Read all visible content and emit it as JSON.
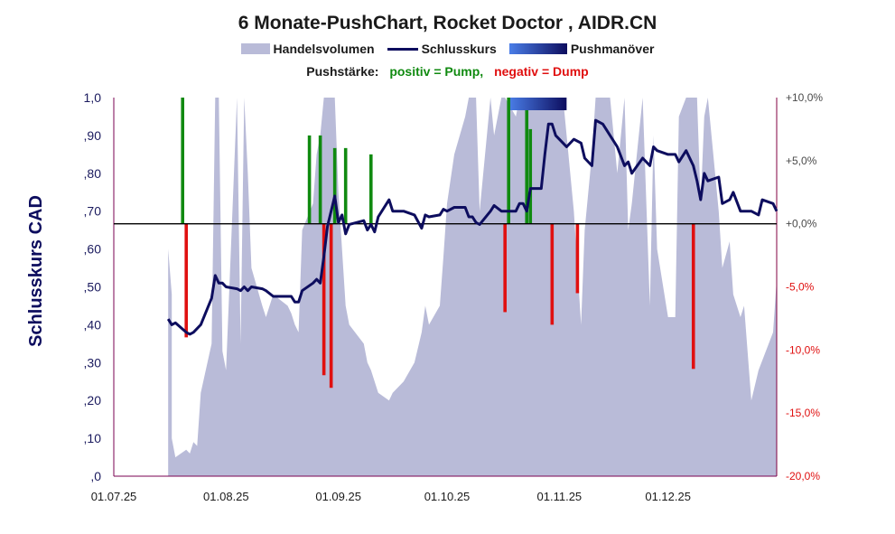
{
  "title": "6 Monate-PushChart, Rocket Doctor , AIDR.CN",
  "legend": {
    "volume": "Handelsvolumen",
    "close": "Schlusskurs",
    "push": "Pushmanöver"
  },
  "subtitle": {
    "lead": "Pushstärke:",
    "positive": "positiv = Pump,",
    "negative": "negativ = Dump"
  },
  "colors": {
    "volume": "#b9bbd8",
    "close": "#0d0d5e",
    "pump": "#108a10",
    "dump": "#e01010",
    "axis_right": "#800040",
    "push_start": "#4a7ee8",
    "push_end": "#0d0d5e"
  },
  "chart_data": {
    "type": "line",
    "ylabel": "Schlusskurs CAD",
    "y_left": {
      "range": [
        0,
        1.0
      ],
      "ticks": [
        ",0",
        ",10",
        ",20",
        ",30",
        ",40",
        ",50",
        ",60",
        ",70",
        ",80",
        ",90",
        "1,0"
      ]
    },
    "y_right": {
      "range": [
        -20,
        10
      ],
      "ticks": [
        "-20,0%",
        "-15,0%",
        "-10,0%",
        "-5,0%",
        "+0,0%",
        "+5,0%",
        "+10,0%"
      ]
    },
    "x": {
      "range": [
        "2025-07-01",
        "2025-12-31"
      ],
      "ticks": [
        "01.07.25",
        "01.08.25",
        "01.09.25",
        "01.10.25",
        "01.11.25",
        "01.12.25"
      ]
    },
    "close_series": {
      "name": "Schlusskurs",
      "points": [
        [
          "2025-07-16",
          0.415
        ],
        [
          "2025-07-17",
          0.4
        ],
        [
          "2025-07-18",
          0.405
        ],
        [
          "2025-07-21",
          0.38
        ],
        [
          "2025-07-22",
          0.375
        ],
        [
          "2025-07-23",
          0.38
        ],
        [
          "2025-07-24",
          0.39
        ],
        [
          "2025-07-25",
          0.4
        ],
        [
          "2025-07-28",
          0.47
        ],
        [
          "2025-07-29",
          0.53
        ],
        [
          "2025-07-30",
          0.51
        ],
        [
          "2025-07-31",
          0.51
        ],
        [
          "2025-08-01",
          0.5
        ],
        [
          "2025-08-04",
          0.495
        ],
        [
          "2025-08-05",
          0.49
        ],
        [
          "2025-08-06",
          0.5
        ],
        [
          "2025-08-07",
          0.49
        ],
        [
          "2025-08-08",
          0.5
        ],
        [
          "2025-08-11",
          0.495
        ],
        [
          "2025-08-12",
          0.49
        ],
        [
          "2025-08-14",
          0.475
        ],
        [
          "2025-08-18",
          0.475
        ],
        [
          "2025-08-19",
          0.475
        ],
        [
          "2025-08-20",
          0.46
        ],
        [
          "2025-08-21",
          0.46
        ],
        [
          "2025-08-22",
          0.49
        ],
        [
          "2025-08-25",
          0.51
        ],
        [
          "2025-08-26",
          0.52
        ],
        [
          "2025-08-27",
          0.51
        ],
        [
          "2025-08-28",
          0.58
        ],
        [
          "2025-08-29",
          0.66
        ],
        [
          "2025-08-31",
          0.74
        ],
        [
          "2025-09-01",
          0.67
        ],
        [
          "2025-09-02",
          0.69
        ],
        [
          "2025-09-03",
          0.64
        ],
        [
          "2025-09-04",
          0.665
        ],
        [
          "2025-09-08",
          0.675
        ],
        [
          "2025-09-09",
          0.65
        ],
        [
          "2025-09-10",
          0.665
        ],
        [
          "2025-09-11",
          0.645
        ],
        [
          "2025-09-12",
          0.685
        ],
        [
          "2025-09-15",
          0.73
        ],
        [
          "2025-09-16",
          0.7
        ],
        [
          "2025-09-19",
          0.7
        ],
        [
          "2025-09-22",
          0.69
        ],
        [
          "2025-09-24",
          0.655
        ],
        [
          "2025-09-25",
          0.69
        ],
        [
          "2025-09-26",
          0.685
        ],
        [
          "2025-09-29",
          0.69
        ],
        [
          "2025-09-30",
          0.705
        ],
        [
          "2025-10-01",
          0.7
        ],
        [
          "2025-10-03",
          0.71
        ],
        [
          "2025-10-06",
          0.71
        ],
        [
          "2025-10-07",
          0.685
        ],
        [
          "2025-10-08",
          0.685
        ],
        [
          "2025-10-09",
          0.67
        ],
        [
          "2025-10-10",
          0.665
        ],
        [
          "2025-10-13",
          0.7
        ],
        [
          "2025-10-14",
          0.715
        ],
        [
          "2025-10-16",
          0.7
        ],
        [
          "2025-10-17",
          0.7
        ],
        [
          "2025-10-20",
          0.7
        ],
        [
          "2025-10-21",
          0.72
        ],
        [
          "2025-10-22",
          0.72
        ],
        [
          "2025-10-23",
          0.7
        ],
        [
          "2025-10-24",
          0.76
        ],
        [
          "2025-10-27",
          0.76
        ],
        [
          "2025-10-28",
          0.85
        ],
        [
          "2025-10-29",
          0.93
        ],
        [
          "2025-10-30",
          0.93
        ],
        [
          "2025-10-31",
          0.9
        ],
        [
          "2025-11-02",
          0.88
        ],
        [
          "2025-11-03",
          0.87
        ],
        [
          "2025-11-05",
          0.89
        ],
        [
          "2025-11-07",
          0.88
        ],
        [
          "2025-11-08",
          0.84
        ],
        [
          "2025-11-10",
          0.82
        ],
        [
          "2025-11-11",
          0.94
        ],
        [
          "2025-11-13",
          0.93
        ],
        [
          "2025-11-15",
          0.9
        ],
        [
          "2025-11-17",
          0.87
        ],
        [
          "2025-11-19",
          0.82
        ],
        [
          "2025-11-20",
          0.83
        ],
        [
          "2025-11-21",
          0.8
        ],
        [
          "2025-11-24",
          0.84
        ],
        [
          "2025-11-26",
          0.82
        ],
        [
          "2025-11-27",
          0.87
        ],
        [
          "2025-11-28",
          0.86
        ],
        [
          "2025-12-01",
          0.85
        ],
        [
          "2025-12-03",
          0.85
        ],
        [
          "2025-12-04",
          0.83
        ],
        [
          "2025-12-06",
          0.86
        ],
        [
          "2025-12-08",
          0.82
        ],
        [
          "2025-12-09",
          0.78
        ],
        [
          "2025-12-10",
          0.73
        ],
        [
          "2025-12-11",
          0.8
        ],
        [
          "2025-12-12",
          0.78
        ],
        [
          "2025-12-15",
          0.79
        ],
        [
          "2025-12-16",
          0.72
        ],
        [
          "2025-12-18",
          0.73
        ],
        [
          "2025-12-19",
          0.75
        ],
        [
          "2025-12-21",
          0.7
        ],
        [
          "2025-12-24",
          0.7
        ],
        [
          "2025-12-26",
          0.69
        ],
        [
          "2025-12-27",
          0.73
        ],
        [
          "2025-12-30",
          0.72
        ],
        [
          "2025-12-31",
          0.7
        ]
      ]
    },
    "volume_series": {
      "name": "Handelsvolumen",
      "values_relative": [
        [
          "2025-07-16",
          0.6
        ],
        [
          "2025-07-17",
          0.48
        ],
        [
          "2025-07-17",
          0.1
        ],
        [
          "2025-07-18",
          0.05
        ],
        [
          "2025-07-21",
          0.07
        ],
        [
          "2025-07-22",
          0.06
        ],
        [
          "2025-07-23",
          0.09
        ],
        [
          "2025-07-24",
          0.08
        ],
        [
          "2025-07-25",
          0.22
        ],
        [
          "2025-07-28",
          0.35
        ],
        [
          "2025-07-29",
          1.1
        ],
        [
          "2025-07-30",
          1.1
        ],
        [
          "2025-07-31",
          0.33
        ],
        [
          "2025-08-01",
          0.28
        ],
        [
          "2025-08-04",
          1.1
        ],
        [
          "2025-08-05",
          0.35
        ],
        [
          "2025-08-06",
          1.1
        ],
        [
          "2025-08-07",
          0.8
        ],
        [
          "2025-08-08",
          0.55
        ],
        [
          "2025-08-11",
          0.45
        ],
        [
          "2025-08-12",
          0.42
        ],
        [
          "2025-08-14",
          0.48
        ],
        [
          "2025-08-18",
          0.45
        ],
        [
          "2025-08-19",
          0.43
        ],
        [
          "2025-08-20",
          0.4
        ],
        [
          "2025-08-21",
          0.38
        ],
        [
          "2025-08-22",
          0.65
        ],
        [
          "2025-08-25",
          0.72
        ],
        [
          "2025-08-26",
          0.85
        ],
        [
          "2025-08-27",
          0.9
        ],
        [
          "2025-08-28",
          1.0
        ],
        [
          "2025-08-29",
          1.1
        ],
        [
          "2025-08-31",
          1.1
        ],
        [
          "2025-09-01",
          0.75
        ],
        [
          "2025-09-02",
          0.6
        ],
        [
          "2025-09-03",
          0.45
        ],
        [
          "2025-09-04",
          0.4
        ],
        [
          "2025-09-08",
          0.35
        ],
        [
          "2025-09-09",
          0.3
        ],
        [
          "2025-09-10",
          0.28
        ],
        [
          "2025-09-11",
          0.25
        ],
        [
          "2025-09-12",
          0.22
        ],
        [
          "2025-09-15",
          0.2
        ],
        [
          "2025-09-16",
          0.22
        ],
        [
          "2025-09-19",
          0.25
        ],
        [
          "2025-09-22",
          0.3
        ],
        [
          "2025-09-24",
          0.38
        ],
        [
          "2025-09-25",
          0.45
        ],
        [
          "2025-09-26",
          0.4
        ],
        [
          "2025-09-29",
          0.45
        ],
        [
          "2025-09-30",
          0.58
        ],
        [
          "2025-10-01",
          0.72
        ],
        [
          "2025-10-03",
          0.85
        ],
        [
          "2025-10-06",
          0.95
        ],
        [
          "2025-10-07",
          1.0
        ],
        [
          "2025-10-08",
          1.1
        ],
        [
          "2025-10-09",
          1.05
        ],
        [
          "2025-10-10",
          0.7
        ],
        [
          "2025-10-13",
          1.1
        ],
        [
          "2025-10-14",
          0.9
        ],
        [
          "2025-10-16",
          1.1
        ],
        [
          "2025-10-17",
          1.0
        ],
        [
          "2025-10-20",
          0.95
        ],
        [
          "2025-10-21",
          1.1
        ],
        [
          "2025-10-22",
          1.1
        ],
        [
          "2025-10-23",
          1.1
        ],
        [
          "2025-10-24",
          1.1
        ],
        [
          "2025-10-27",
          1.1
        ],
        [
          "2025-10-28",
          1.1
        ],
        [
          "2025-10-29",
          1.1
        ],
        [
          "2025-10-30",
          1.1
        ],
        [
          "2025-10-31",
          1.1
        ],
        [
          "2025-11-02",
          1.1
        ],
        [
          "2025-11-03",
          0.9
        ],
        [
          "2025-11-05",
          0.7
        ],
        [
          "2025-11-07",
          0.4
        ],
        [
          "2025-11-08",
          0.65
        ],
        [
          "2025-11-10",
          0.85
        ],
        [
          "2025-11-11",
          1.1
        ],
        [
          "2025-11-13",
          1.1
        ],
        [
          "2025-11-15",
          1.0
        ],
        [
          "2025-11-17",
          0.8
        ],
        [
          "2025-11-19",
          1.1
        ],
        [
          "2025-11-20",
          0.65
        ],
        [
          "2025-11-21",
          0.72
        ],
        [
          "2025-11-24",
          1.1
        ],
        [
          "2025-11-26",
          0.45
        ],
        [
          "2025-11-27",
          0.9
        ],
        [
          "2025-11-28",
          0.6
        ],
        [
          "2025-12-01",
          0.42
        ],
        [
          "2025-12-03",
          0.42
        ],
        [
          "2025-12-04",
          0.95
        ],
        [
          "2025-12-06",
          1.1
        ],
        [
          "2025-12-08",
          1.1
        ],
        [
          "2025-12-09",
          1.1
        ],
        [
          "2025-12-10",
          0.72
        ],
        [
          "2025-12-11",
          0.95
        ],
        [
          "2025-12-12",
          1.0
        ],
        [
          "2025-12-15",
          0.7
        ],
        [
          "2025-12-16",
          0.55
        ],
        [
          "2025-12-18",
          0.62
        ],
        [
          "2025-12-19",
          0.48
        ],
        [
          "2025-12-21",
          0.42
        ],
        [
          "2025-12-22",
          0.45
        ],
        [
          "2025-12-24",
          0.2
        ],
        [
          "2025-12-26",
          0.28
        ],
        [
          "2025-12-30",
          0.38
        ],
        [
          "2025-12-31",
          0.52
        ]
      ]
    },
    "push_strength_percent": [
      {
        "date": "2025-07-20",
        "value": 10.0
      },
      {
        "date": "2025-07-21",
        "value": -9.0
      },
      {
        "date": "2025-08-24",
        "value": 7.0
      },
      {
        "date": "2025-08-27",
        "value": 7.0
      },
      {
        "date": "2025-08-28",
        "value": -12.0
      },
      {
        "date": "2025-08-30",
        "value": -13.0
      },
      {
        "date": "2025-08-31",
        "value": 6.0
      },
      {
        "date": "2025-09-03",
        "value": 6.0
      },
      {
        "date": "2025-09-10",
        "value": 5.5
      },
      {
        "date": "2025-10-17",
        "value": -7.0
      },
      {
        "date": "2025-10-18",
        "value": 10.0
      },
      {
        "date": "2025-10-23",
        "value": 9.0
      },
      {
        "date": "2025-10-24",
        "value": 7.5
      },
      {
        "date": "2025-10-30",
        "value": -8.0
      },
      {
        "date": "2025-11-06",
        "value": -5.5
      },
      {
        "date": "2025-12-08",
        "value": -11.5
      }
    ],
    "push_maneuver": {
      "start": "2025-10-18",
      "end": "2025-11-03"
    },
    "zero_line_right": 0
  }
}
